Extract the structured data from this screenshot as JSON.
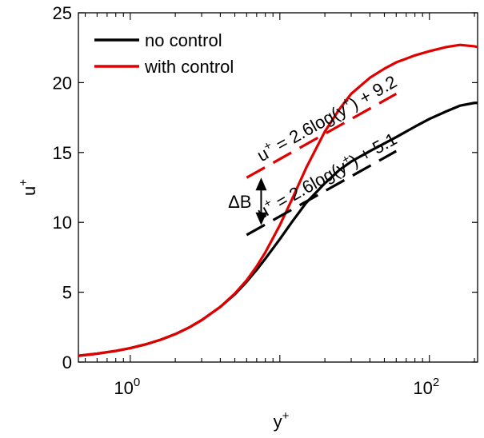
{
  "chart_data": {
    "type": "line",
    "xscale": "log",
    "xlim": [
      0.45,
      210
    ],
    "ylim": [
      0,
      25
    ],
    "xlabel": "y",
    "xlabel_sup": "+",
    "ylabel": "u",
    "ylabel_sup": "+",
    "grid": false,
    "legend_position": "top-left",
    "x_ticks": [
      {
        "value": 1,
        "base": "10",
        "exp": "0"
      },
      {
        "value": 100,
        "base": "10",
        "exp": "2"
      }
    ],
    "y_ticks": [
      0,
      5,
      10,
      15,
      20,
      25
    ],
    "series": [
      {
        "name": "no control",
        "color": "#000000",
        "x": [
          0.45,
          0.6,
          0.8,
          1,
          1.3,
          1.6,
          2,
          2.5,
          3,
          4,
          5,
          6,
          7,
          8,
          10,
          12,
          15,
          20,
          25,
          30,
          40,
          50,
          60,
          80,
          100,
          130,
          160,
          200,
          210
        ],
        "y": [
          0.45,
          0.6,
          0.8,
          1.0,
          1.3,
          1.6,
          2.0,
          2.5,
          3.0,
          3.95,
          4.85,
          5.75,
          6.6,
          7.4,
          8.8,
          10.0,
          11.4,
          12.8,
          13.75,
          14.35,
          15.1,
          15.65,
          16.1,
          16.85,
          17.4,
          17.95,
          18.35,
          18.55,
          18.55
        ]
      },
      {
        "name": "with control",
        "color": "#e00000",
        "x": [
          0.45,
          0.6,
          0.8,
          1,
          1.3,
          1.6,
          2,
          2.5,
          3,
          4,
          5,
          6,
          7,
          8,
          10,
          12,
          15,
          20,
          25,
          30,
          40,
          50,
          60,
          80,
          100,
          130,
          160,
          200,
          210
        ],
        "y": [
          0.45,
          0.6,
          0.8,
          1.0,
          1.3,
          1.6,
          2.0,
          2.5,
          3.0,
          3.95,
          4.9,
          5.85,
          6.85,
          7.85,
          9.8,
          11.6,
          13.9,
          16.5,
          18.1,
          19.2,
          20.35,
          21.0,
          21.45,
          21.95,
          22.25,
          22.55,
          22.7,
          22.6,
          22.55
        ]
      }
    ],
    "reference_lines": [
      {
        "color": "#e00000",
        "style": "dashed",
        "x": [
          6,
          60
        ],
        "y": [
          13.2,
          19.2
        ],
        "label_prefix": "u",
        "label_sup_u": "+",
        "label_mid": " = 2.6log(y",
        "label_sup_y": "+",
        "label_suffix": ") + 9.2"
      },
      {
        "color": "#000000",
        "style": "dashed",
        "x": [
          6,
          60
        ],
        "y": [
          9.1,
          15.1
        ],
        "label_prefix": "u",
        "label_sup_u": "+",
        "label_mid": " = 2.6log(y",
        "label_sup_y": "+",
        "label_suffix": ") + 5.1"
      }
    ],
    "annotations": [
      {
        "text": "ΔB",
        "type": "double-arrow",
        "x": 7.5,
        "y_from": 9.8,
        "y_to": 13.2
      }
    ]
  }
}
